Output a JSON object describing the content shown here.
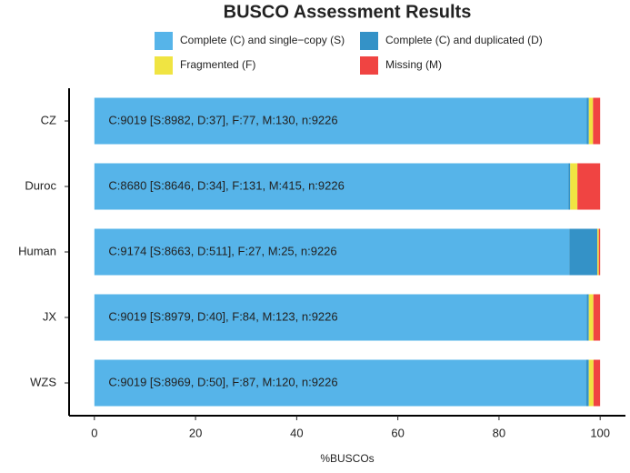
{
  "chart_data": {
    "type": "stacked_barh",
    "title": "BUSCO Assessment Results",
    "xlabel": "%BUSCOs",
    "categories": [
      "CZ",
      "Duroc",
      "Human",
      "JX",
      "WZS"
    ],
    "series": [
      {
        "name": "Complete (C) and single−copy (S)",
        "color": "#56B4E9",
        "values": [
          97.36,
          93.71,
          93.9,
          97.32,
          97.21
        ]
      },
      {
        "name": "Complete (C) and duplicated (D)",
        "color": "#3492C7",
        "values": [
          0.4,
          0.37,
          5.54,
          0.43,
          0.54
        ]
      },
      {
        "name": "Fragmented (F)",
        "color": "#F0E442",
        "values": [
          0.83,
          1.42,
          0.29,
          0.91,
          0.94
        ]
      },
      {
        "name": "Missing (M)",
        "color": "#F04442",
        "values": [
          1.41,
          4.5,
          0.27,
          1.33,
          1.3
        ]
      }
    ],
    "annotations": [
      "C:9019 [S:8982, D:37], F:77, M:130, n:9226",
      "C:8680 [S:8646, D:34], F:131, M:415, n:9226",
      "C:9174 [S:8663, D:511], F:27, M:25, n:9226",
      "C:9019 [S:8979, D:40], F:84, M:123, n:9226",
      "C:9019 [S:8969, D:50], F:87, M:120, n:9226"
    ],
    "xlim": [
      -5,
      105
    ],
    "xticks": [
      0,
      20,
      40,
      60,
      80,
      100
    ]
  }
}
